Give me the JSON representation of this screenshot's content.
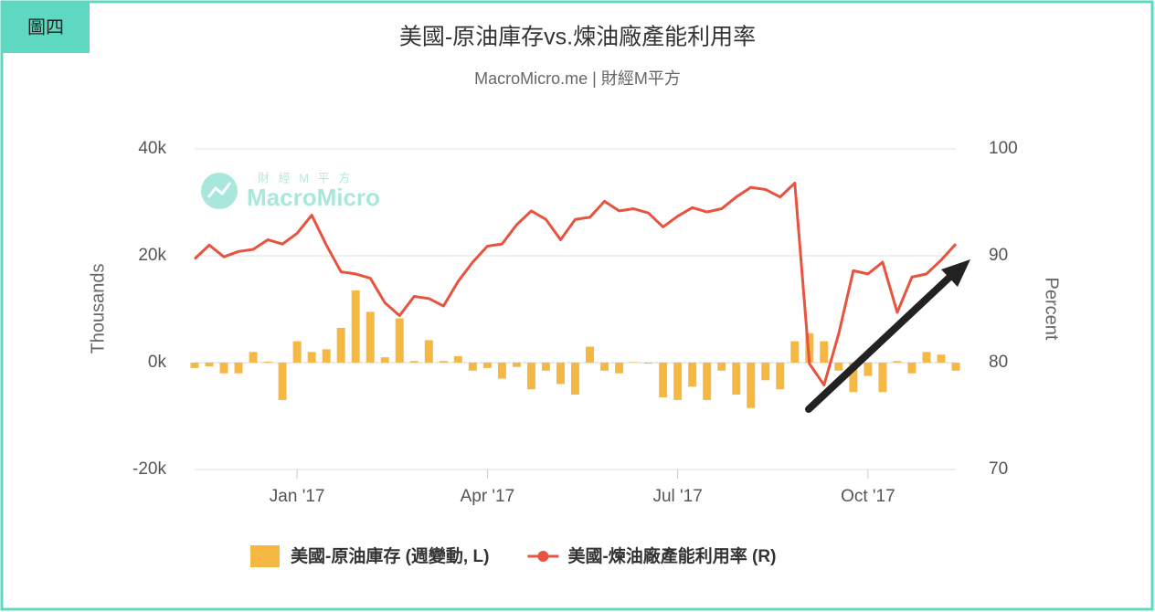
{
  "badge": "圖四",
  "chart_data": {
    "type": "bar-line",
    "title": "美國-原油庫存vs.煉油廠產能利用率",
    "subtitle": "MacroMicro.me | 財經M平方",
    "watermark": [
      "財 經 M 平 方",
      "MacroMicro"
    ],
    "y_label": "Thousands",
    "y2_label": "Percent",
    "categories": [
      null,
      null,
      null,
      null,
      null,
      null,
      null,
      "Jan '17",
      null,
      null,
      null,
      null,
      null,
      null,
      null,
      null,
      null,
      null,
      null,
      null,
      "Apr '17",
      null,
      null,
      null,
      null,
      null,
      null,
      null,
      null,
      null,
      null,
      null,
      null,
      "Jul '17",
      null,
      null,
      null,
      null,
      null,
      null,
      null,
      null,
      null,
      null,
      null,
      null,
      "Oct '17",
      null,
      null,
      null,
      null,
      null,
      null
    ],
    "ylim": [
      -20,
      40
    ],
    "yticks": [
      {
        "value": -20,
        "label": "-20k"
      },
      {
        "value": 0,
        "label": "0k"
      },
      {
        "value": 20,
        "label": "20k"
      },
      {
        "value": 40,
        "label": "40k"
      }
    ],
    "y2lim": [
      70,
      100
    ],
    "y2ticks": [
      70,
      80,
      90,
      100
    ],
    "grid": true,
    "series": [
      {
        "name": "美國-原油庫存 (週變動, L)",
        "type": "bar",
        "color": "#f5b943",
        "values": [
          -1,
          -0.7,
          -2,
          -2,
          2,
          0.2,
          -7,
          4,
          2,
          2.5,
          6.5,
          13.5,
          9.5,
          1,
          8.3,
          0.3,
          4.2,
          0.3,
          1.2,
          -1.5,
          -1,
          -3,
          -0.8,
          -5,
          -1.5,
          -4,
          -6,
          3,
          -1.5,
          -2,
          0.1,
          -0.2,
          -6.5,
          -7,
          -4.5,
          -7,
          -1.5,
          -6,
          -8.5,
          -3.3,
          -5,
          4,
          5.5,
          4,
          -1.5,
          -5.5,
          -2.5,
          -5.5,
          0.3,
          -2,
          2,
          1.5,
          -1.5
        ]
      },
      {
        "name": "美國-煉油廠產能利用率 (R)",
        "type": "line",
        "axis": "y2",
        "color": "#e8533f",
        "values": [
          89.7,
          91.0,
          89.9,
          90.4,
          90.6,
          91.5,
          91.1,
          92.1,
          93.8,
          91.0,
          88.5,
          88.3,
          87.9,
          85.6,
          84.4,
          86.2,
          86.0,
          85.3,
          87.6,
          89.4,
          90.9,
          91.1,
          92.9,
          94.2,
          93.4,
          91.5,
          93.4,
          93.6,
          95.1,
          94.2,
          94.4,
          94.0,
          92.7,
          93.7,
          94.5,
          94.1,
          94.4,
          95.5,
          96.4,
          96.2,
          95.5,
          96.8,
          79.9,
          77.9,
          82.7,
          88.6,
          88.3,
          89.4,
          84.7,
          88.0,
          88.3,
          89.6,
          91.1
        ]
      }
    ]
  }
}
